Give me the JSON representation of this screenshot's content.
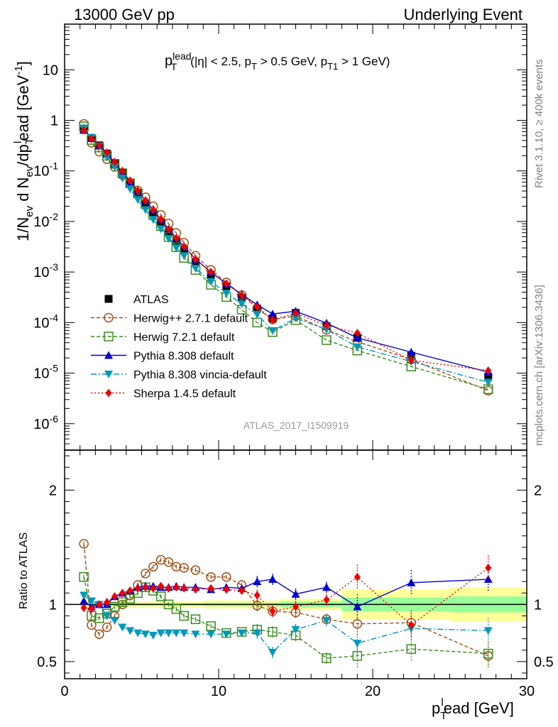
{
  "header": {
    "left": "13000 GeV pp",
    "right": "Underlying Event"
  },
  "side_labels": {
    "rivet": "Rivet 3.1.10, ≥ 400k events",
    "mcplots": "mcplots.cern.ch [arXiv:1306.3436]"
  },
  "watermark": "ATLAS_2017_I1509919",
  "selection": {
    "p": "p",
    "sup": "lead",
    "sub": "T",
    "cuts": "(|η| < 2.5, p",
    "cuts_sub": "T",
    "cuts2": " > 0.5 GeV, p",
    "cuts2_sub": "T1",
    "cuts3": " > 1 GeV)"
  },
  "ylabel_main": {
    "a": "1/N",
    "a_sub": "ev",
    "b": " d N",
    "b_sub": "ev",
    "c": "/dp",
    "c_sub": "T",
    "c_sup": "l",
    "d": "ead [GeV",
    "d_sup": "-1",
    "e": "]"
  },
  "ylabel_ratio": "Ratio to ATLAS",
  "xlabel": {
    "a": "p",
    "a_sub": "T",
    "a_sup": "l",
    "b": "ead [GeV]"
  },
  "legend": [
    {
      "label": "ATLAS",
      "color": "#000000"
    },
    {
      "label": "Herwig++ 2.7.1 default",
      "color": "#a0521b"
    },
    {
      "label": "Herwig 7.2.1 default",
      "color": "#3c8c1e"
    },
    {
      "label": "Pythia 8.308 default",
      "color": "#0000d0"
    },
    {
      "label": "Pythia 8.308 vincia-default",
      "color": "#0099bb"
    },
    {
      "label": "Sherpa 1.4.5 default",
      "color": "#ee0000"
    }
  ],
  "chart_data": [
    {
      "type": "scatter",
      "panel": "main",
      "title": "",
      "xlabel": "plead [GeV]",
      "ylabel": "1/Nev d Nev/dplead [GeV-1]",
      "xlim": [
        0,
        30
      ],
      "ylim": [
        3e-07,
        80
      ],
      "yscale": "log",
      "x_ticks": [
        "0",
        "10",
        "20",
        "30"
      ],
      "y_ticks": [
        "10",
        "1",
        "10^-1",
        "10^-2",
        "10^-3",
        "10^-4",
        "10^-5",
        "10^-6"
      ],
      "x": [
        1.25,
        1.75,
        2.25,
        2.75,
        3.25,
        3.75,
        4.25,
        4.75,
        5.25,
        5.75,
        6.25,
        6.75,
        7.25,
        7.75,
        8.5,
        9.5,
        10.5,
        11.5,
        12.5,
        13.5,
        15,
        17,
        19,
        22.5,
        27.5
      ],
      "series": [
        {
          "name": "ATLAS",
          "values": [
            0.65,
            0.45,
            0.32,
            0.22,
            0.14,
            0.09,
            0.057,
            0.036,
            0.023,
            0.0148,
            0.0095,
            0.0062,
            0.0041,
            0.0028,
            0.0016,
            0.00088,
            0.00052,
            0.00031,
            0.00019,
            0.00012,
            0.000155,
            8.5e-05,
            5e-05,
            2.2e-05,
            8.5e-06
          ]
        },
        {
          "name": "Herwig++ 2.7.1 default",
          "values": [
            0.85,
            0.36,
            0.24,
            0.17,
            0.12,
            0.083,
            0.058,
            0.041,
            0.03,
            0.02,
            0.0135,
            0.0091,
            0.0059,
            0.0038,
            0.0021,
            0.0011,
            0.00062,
            0.00035,
            0.00019,
            0.000115,
            0.000135,
            7.2e-05,
            4.2e-05,
            1.85e-05,
            4.5e-06
          ]
        },
        {
          "name": "Herwig 7.2.1 default",
          "values": [
            0.76,
            0.41,
            0.29,
            0.2,
            0.138,
            0.09,
            0.057,
            0.036,
            0.022,
            0.0134,
            0.0081,
            0.0049,
            0.0031,
            0.0019,
            0.0011,
            0.00056,
            0.00032,
            0.00018,
            0.0001,
            6.5e-05,
            0.000112,
            4.5e-05,
            2.8e-05,
            1.35e-05,
            4.8e-06
          ]
        },
        {
          "name": "Pythia 8.308 default",
          "values": [
            0.66,
            0.44,
            0.32,
            0.22,
            0.145,
            0.094,
            0.061,
            0.04,
            0.026,
            0.017,
            0.011,
            0.0071,
            0.0047,
            0.0032,
            0.0018,
            0.00099,
            0.00059,
            0.00036,
            0.000225,
            0.000148,
            0.000168,
            9.8e-05,
            5e-05,
            2.6e-05,
            1.05e-05
          ]
        },
        {
          "name": "Pythia 8.308 vincia-default",
          "values": [
            0.7,
            0.46,
            0.31,
            0.19,
            0.12,
            0.072,
            0.044,
            0.027,
            0.017,
            0.0109,
            0.0071,
            0.0046,
            0.003,
            0.0021,
            0.00118,
            0.00065,
            0.00038,
            0.000235,
            0.000145,
            6.9e-05,
            0.000122,
            7.3e-05,
            3.3e-05,
            1.7e-05,
            6.6e-06
          ]
        },
        {
          "name": "Sherpa 1.4.5 default",
          "values": [
            0.63,
            0.43,
            0.32,
            0.23,
            0.15,
            0.1,
            0.064,
            0.041,
            0.026,
            0.017,
            0.011,
            0.0071,
            0.0047,
            0.0032,
            0.0018,
            0.001,
            0.00059,
            0.00035,
            0.000205,
            0.000113,
            0.000152,
            8.8e-05,
            6.2e-05,
            1.8e-05,
            1.12e-05
          ]
        }
      ]
    },
    {
      "type": "scatter",
      "panel": "ratio",
      "title": "",
      "xlabel": "plead [GeV]",
      "ylabel": "Ratio to ATLAS",
      "xlim": [
        0,
        30
      ],
      "ylim": [
        0.35,
        2.35
      ],
      "y_ticks": [
        "0.5",
        "1",
        "2"
      ],
      "x": [
        1.25,
        1.75,
        2.25,
        2.75,
        3.25,
        3.75,
        4.25,
        4.75,
        5.25,
        5.75,
        6.25,
        6.75,
        7.25,
        7.75,
        8.5,
        9.5,
        10.5,
        11.5,
        12.5,
        13.5,
        15,
        17,
        19,
        22.5,
        27.5
      ],
      "band_bins": [
        {
          "x": [
            1,
            9
          ],
          "inner": 0.01,
          "outer": 0.025
        },
        {
          "x": [
            9,
            14
          ],
          "inner": 0.015,
          "outer": 0.035
        },
        {
          "x": [
            14,
            18
          ],
          "inner": 0.025,
          "outer": 0.05
        },
        {
          "x": [
            18,
            25
          ],
          "inner": 0.06,
          "outer": 0.13
        },
        {
          "x": [
            25,
            30
          ],
          "inner": 0.07,
          "outer": 0.15
        }
      ],
      "series": [
        {
          "name": "Herwig++ 2.7.1 default",
          "values": [
            1.53,
            0.82,
            0.74,
            0.8,
            0.9,
            1.0,
            1.08,
            1.17,
            1.27,
            1.33,
            1.39,
            1.37,
            1.33,
            1.32,
            1.3,
            1.24,
            1.24,
            1.17,
            0.99,
            0.94,
            0.93,
            0.87,
            0.83,
            0.84,
            0.55
          ]
        },
        {
          "name": "Herwig 7.2.1 default",
          "values": [
            1.24,
            0.9,
            0.88,
            0.92,
            0.98,
            1.02,
            1.05,
            1.1,
            1.15,
            1.12,
            1.07,
            1.0,
            0.96,
            0.9,
            0.87,
            0.81,
            0.75,
            0.76,
            0.78,
            0.76,
            0.73,
            0.53,
            0.55,
            0.61,
            0.57
          ]
        },
        {
          "name": "Pythia 8.308 default",
          "values": [
            1.03,
            0.98,
            1.0,
            1.0,
            1.07,
            1.1,
            1.12,
            1.15,
            1.16,
            1.16,
            1.15,
            1.15,
            1.16,
            1.15,
            1.15,
            1.13,
            1.15,
            1.14,
            1.2,
            1.22,
            1.09,
            1.15,
            0.98,
            1.19,
            1.22
          ]
        },
        {
          "name": "Pythia 8.308 vincia-default",
          "values": [
            1.08,
            1.03,
            1.0,
            0.9,
            0.86,
            0.8,
            0.77,
            0.75,
            0.74,
            0.73,
            0.75,
            0.75,
            0.75,
            0.75,
            0.74,
            0.74,
            0.74,
            0.75,
            0.75,
            0.58,
            0.78,
            0.86,
            0.66,
            0.79,
            0.77
          ]
        },
        {
          "name": "Sherpa 1.4.5 default",
          "values": [
            0.97,
            0.96,
            1.0,
            1.02,
            1.07,
            1.1,
            1.12,
            1.14,
            1.15,
            1.14,
            1.16,
            1.14,
            1.15,
            1.14,
            1.13,
            1.14,
            1.13,
            1.12,
            1.08,
            0.94,
            0.98,
            1.04,
            1.24,
            0.82,
            1.32
          ]
        }
      ]
    }
  ]
}
